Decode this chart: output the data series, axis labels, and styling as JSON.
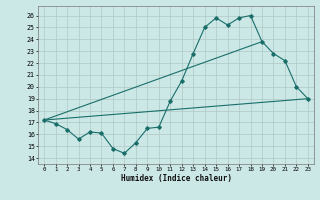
{
  "xlabel": "Humidex (Indice chaleur)",
  "background_color": "#cbe8e6",
  "grid_color": "#b0c8c6",
  "line_color": "#1a6e6a",
  "xlim": [
    -0.5,
    23.5
  ],
  "ylim": [
    13.5,
    26.8
  ],
  "yticks": [
    14,
    15,
    16,
    17,
    18,
    19,
    20,
    21,
    22,
    23,
    24,
    25,
    26
  ],
  "xticks": [
    0,
    1,
    2,
    3,
    4,
    5,
    6,
    7,
    8,
    9,
    10,
    11,
    12,
    13,
    14,
    15,
    16,
    17,
    18,
    19,
    20,
    21,
    22,
    23
  ],
  "main_x": [
    0,
    1,
    2,
    3,
    4,
    5,
    6,
    7,
    8,
    9,
    10,
    11,
    12,
    13,
    14,
    15,
    16,
    17,
    18,
    19,
    20,
    21,
    22,
    23
  ],
  "main_y": [
    17.2,
    16.9,
    16.4,
    15.6,
    16.2,
    16.1,
    14.8,
    14.4,
    15.3,
    16.5,
    16.6,
    18.8,
    20.5,
    22.8,
    25.0,
    25.8,
    25.2,
    25.8,
    26.0,
    23.8,
    22.8,
    22.2,
    20.0,
    19.0
  ],
  "trend1_x": [
    0,
    23
  ],
  "trend1_y": [
    17.2,
    19.0
  ],
  "trend2_x": [
    0,
    19
  ],
  "trend2_y": [
    17.2,
    23.8
  ]
}
